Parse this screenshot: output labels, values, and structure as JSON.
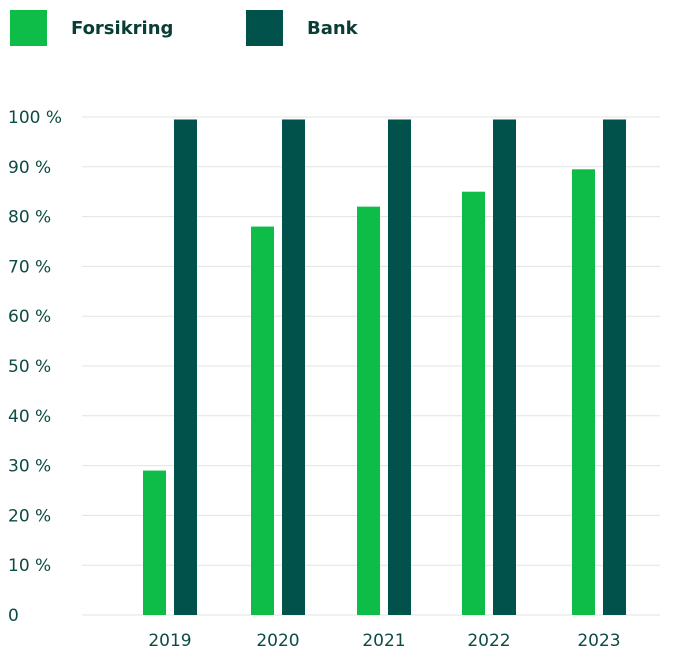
{
  "colors": {
    "Forsikring": "#0dbd47",
    "Bank": "#00524b",
    "grid": "#e3e3e3",
    "text": "#0d4b44"
  },
  "legend": [
    {
      "label": "Forsikring",
      "color": "#0dbd47"
    },
    {
      "label": "Bank",
      "color": "#00524b"
    }
  ],
  "chart_data": {
    "type": "bar",
    "categories": [
      "2019",
      "2020",
      "2021",
      "2022",
      "2023"
    ],
    "series": [
      {
        "name": "Forsikring",
        "values": [
          29,
          78,
          82,
          85,
          89.5
        ]
      },
      {
        "name": "Bank",
        "values": [
          99.5,
          99.5,
          99.5,
          99.5,
          99.5
        ]
      }
    ],
    "yticks": [
      "0",
      "10 %",
      "20 %",
      "30 %",
      "40 %",
      "50 %",
      "60 %",
      "70 %",
      "80 %",
      "90 %",
      "100 %"
    ],
    "ylim": [
      0,
      100
    ],
    "grid": true,
    "legend_position": "top-left"
  }
}
